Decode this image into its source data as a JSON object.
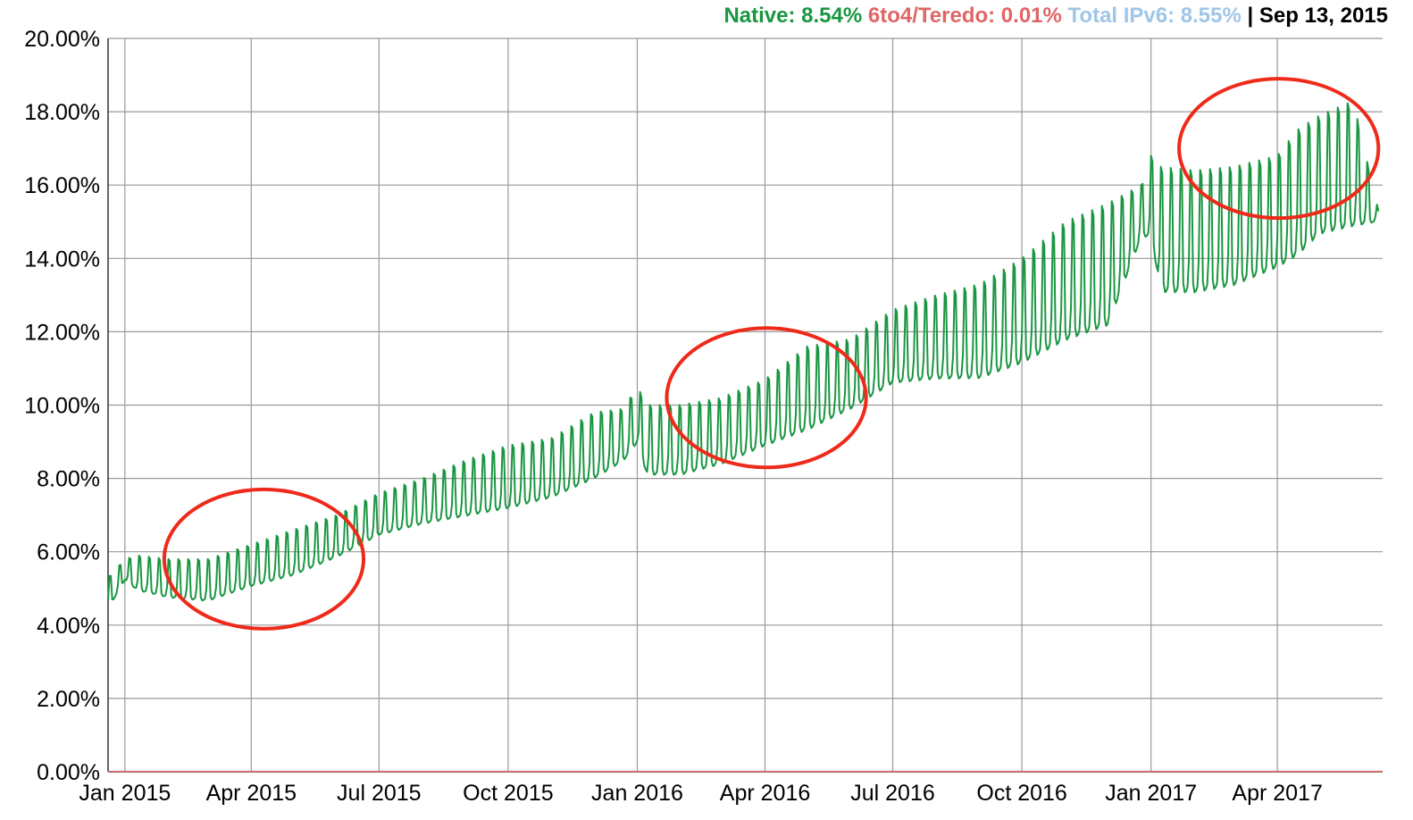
{
  "header": {
    "native_label": "Native: 8.54%",
    "teredo_label": "6to4/Teredo: 0.01%",
    "total_label": "Total IPv6: 8.55%",
    "separator": " | ",
    "date": "Sep 13, 2015"
  },
  "colors": {
    "native": "#1a9641",
    "teredo": "#e06666",
    "total": "#9fc5e8",
    "annotation": "#ee2a1a",
    "grid": "#999999"
  },
  "chart_data": {
    "type": "line",
    "title": "",
    "xlabel": "",
    "ylabel": "",
    "ylim": [
      0,
      20
    ],
    "xlim": [
      "2014-12-20",
      "2017-06-15"
    ],
    "y_ticks": [
      "0.00%",
      "2.00%",
      "4.00%",
      "6.00%",
      "8.00%",
      "10.00%",
      "12.00%",
      "14.00%",
      "16.00%",
      "18.00%",
      "20.00%"
    ],
    "x_ticks": [
      {
        "date": "2015-01-01",
        "label": "Jan 2015"
      },
      {
        "date": "2015-04-01",
        "label": "Apr 2015"
      },
      {
        "date": "2015-07-01",
        "label": "Jul 2015"
      },
      {
        "date": "2015-10-01",
        "label": "Oct 2015"
      },
      {
        "date": "2016-01-01",
        "label": "Jan 2016"
      },
      {
        "date": "2016-04-01",
        "label": "Apr 2016"
      },
      {
        "date": "2016-07-01",
        "label": "Jul 2016"
      },
      {
        "date": "2016-10-01",
        "label": "Oct 2016"
      },
      {
        "date": "2017-01-01",
        "label": "Jan 2017"
      },
      {
        "date": "2017-04-01",
        "label": "Apr 2017"
      }
    ],
    "grid": true,
    "series": [
      {
        "name": "Native",
        "pattern": "weekly",
        "start": "2014-12-20",
        "end": "2017-06-12",
        "weekly_points": [
          {
            "date": "2014-12-20",
            "low": 4.4,
            "high": 5.3
          },
          {
            "date": "2015-01-01",
            "low": 5.2,
            "high": 5.8
          },
          {
            "date": "2015-01-10",
            "low": 4.9,
            "high": 5.9
          },
          {
            "date": "2015-02-01",
            "low": 4.7,
            "high": 5.8
          },
          {
            "date": "2015-03-01",
            "low": 4.6,
            "high": 5.8
          },
          {
            "date": "2015-04-01",
            "low": 5.0,
            "high": 6.2
          },
          {
            "date": "2015-05-01",
            "low": 5.3,
            "high": 6.6
          },
          {
            "date": "2015-06-01",
            "low": 5.8,
            "high": 7.0
          },
          {
            "date": "2015-07-01",
            "low": 6.4,
            "high": 7.6
          },
          {
            "date": "2015-08-01",
            "low": 6.7,
            "high": 8.0
          },
          {
            "date": "2015-09-01",
            "low": 6.9,
            "high": 8.5
          },
          {
            "date": "2015-10-01",
            "low": 7.1,
            "high": 8.9
          },
          {
            "date": "2015-11-01",
            "low": 7.4,
            "high": 9.1
          },
          {
            "date": "2015-12-01",
            "low": 7.9,
            "high": 9.8
          },
          {
            "date": "2015-12-22",
            "low": 8.4,
            "high": 9.9
          },
          {
            "date": "2016-01-01",
            "low": 8.9,
            "high": 10.5
          },
          {
            "date": "2016-01-08",
            "low": 8.0,
            "high": 10.0
          },
          {
            "date": "2016-02-01",
            "low": 8.0,
            "high": 10.0
          },
          {
            "date": "2016-03-01",
            "low": 8.3,
            "high": 10.2
          },
          {
            "date": "2016-04-01",
            "low": 8.8,
            "high": 10.7
          },
          {
            "date": "2016-05-01",
            "low": 9.2,
            "high": 11.6
          },
          {
            "date": "2016-06-01",
            "low": 9.8,
            "high": 11.8
          },
          {
            "date": "2016-07-01",
            "low": 10.5,
            "high": 12.6
          },
          {
            "date": "2016-08-01",
            "low": 10.6,
            "high": 13.0
          },
          {
            "date": "2016-09-01",
            "low": 10.6,
            "high": 13.3
          },
          {
            "date": "2016-10-01",
            "low": 11.0,
            "high": 14.0
          },
          {
            "date": "2016-11-01",
            "low": 11.6,
            "high": 15.0
          },
          {
            "date": "2016-12-01",
            "low": 12.0,
            "high": 15.5
          },
          {
            "date": "2016-12-25",
            "low": 14.5,
            "high": 16.0
          },
          {
            "date": "2017-01-01",
            "low": 14.5,
            "high": 16.8
          },
          {
            "date": "2017-01-08",
            "low": 12.9,
            "high": 16.5
          },
          {
            "date": "2017-02-01",
            "low": 12.9,
            "high": 16.4
          },
          {
            "date": "2017-03-01",
            "low": 13.1,
            "high": 16.5
          },
          {
            "date": "2017-04-01",
            "low": 13.6,
            "high": 16.8
          },
          {
            "date": "2017-04-15",
            "low": 13.9,
            "high": 17.5
          },
          {
            "date": "2017-05-01",
            "low": 14.5,
            "high": 17.9
          },
          {
            "date": "2017-05-25",
            "low": 14.7,
            "high": 18.3
          },
          {
            "date": "2017-06-12",
            "low": 15.0,
            "high": 15.3
          }
        ]
      },
      {
        "name": "6to4/Teredo",
        "values_constant": 0.01
      }
    ],
    "annotations": [
      {
        "type": "ellipse",
        "center": {
          "date": "2015-04-10",
          "value": 5.8
        },
        "rx_days": 71,
        "ry_value": 1.9
      },
      {
        "type": "ellipse",
        "center": {
          "date": "2016-04-02",
          "value": 10.2
        },
        "rx_days": 71,
        "ry_value": 1.9
      },
      {
        "type": "ellipse",
        "center": {
          "date": "2017-04-02",
          "value": 17.0
        },
        "rx_days": 71,
        "ry_value": 1.9
      }
    ]
  }
}
